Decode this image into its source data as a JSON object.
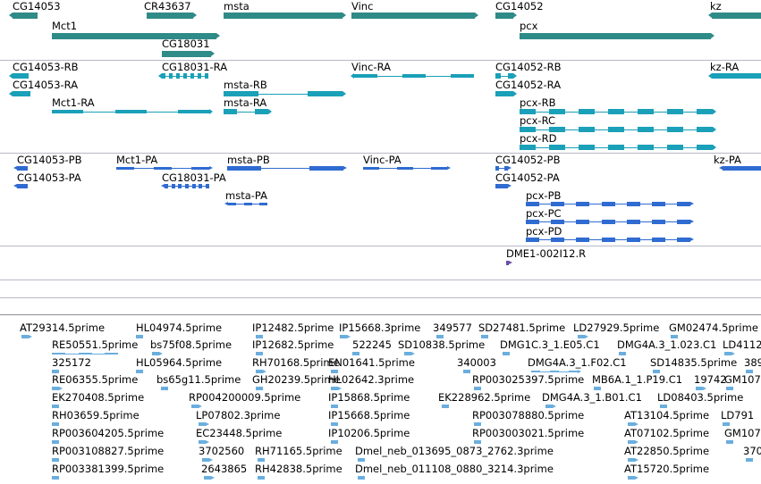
{
  "colors": {
    "gene": "#2e8b87",
    "transcript": "#1aa0b8",
    "protein": "#2f6bd1",
    "est": "#6aaede",
    "clone": "#6b4fa8",
    "separator": "#b8b8c8",
    "separator_dark": "#8c8c98"
  },
  "tracks": {
    "genes": [
      {
        "label": "CG14053"
      },
      {
        "label": "CR43637"
      },
      {
        "label": "msta"
      },
      {
        "label": "Vinc"
      },
      {
        "label": "CG14052"
      },
      {
        "label": "kz"
      },
      {
        "label": "Mct1"
      },
      {
        "label": "pcx"
      },
      {
        "label": "CG18031"
      }
    ],
    "transcripts": [
      {
        "label": "CG14053-RB"
      },
      {
        "label": "CG18031-RA"
      },
      {
        "label": "Vinc-RA"
      },
      {
        "label": "CG14052-RB"
      },
      {
        "label": "kz-RA"
      },
      {
        "label": "CG14053-RA"
      },
      {
        "label": "msta-RB"
      },
      {
        "label": "CG14052-RA"
      },
      {
        "label": "Mct1-RA"
      },
      {
        "label": "msta-RA"
      },
      {
        "label": "pcx-RB"
      },
      {
        "label": "pcx-RC"
      },
      {
        "label": "pcx-RD"
      }
    ],
    "proteins": [
      {
        "label": "CG14053-PB"
      },
      {
        "label": "Mct1-PA"
      },
      {
        "label": "msta-PB"
      },
      {
        "label": "Vinc-PA"
      },
      {
        "label": "CG14052-PB"
      },
      {
        "label": "kz-PA"
      },
      {
        "label": "CG14053-PA"
      },
      {
        "label": "CG18031-PA"
      },
      {
        "label": "CG14052-PA"
      },
      {
        "label": "msta-PA"
      },
      {
        "label": "pcx-PB"
      },
      {
        "label": "pcx-PC"
      },
      {
        "label": "pcx-PD"
      }
    ],
    "clones": [
      {
        "label": "DME1-002I12.R"
      }
    ],
    "ests": [
      {
        "label": "AT29314.5prime"
      },
      {
        "label": "HL04974.5prime"
      },
      {
        "label": "IP12482.5prime"
      },
      {
        "label": "IP15668.3prime"
      },
      {
        "label": "349577"
      },
      {
        "label": "SD27481.5prime"
      },
      {
        "label": "LD27929.5prime"
      },
      {
        "label": "GM02474.5prime"
      },
      {
        "label": "RE50551.5prime"
      },
      {
        "label": "bs75f08.5prime"
      },
      {
        "label": "IP12682.5prime"
      },
      {
        "label": "522245"
      },
      {
        "label": "SD10838.5prime"
      },
      {
        "label": "DMG1C.3_1.E05.C1"
      },
      {
        "label": "DMG4A.3_1.023.C1"
      },
      {
        "label": "LD4112"
      },
      {
        "label": "325172"
      },
      {
        "label": "HL05964.5prime"
      },
      {
        "label": "RH70168.5prime"
      },
      {
        "label": "EN01641.5prime"
      },
      {
        "label": "340003"
      },
      {
        "label": "DMG4A.3_1.F02.C1"
      },
      {
        "label": "SD14835.5prime"
      },
      {
        "label": "389"
      },
      {
        "label": "RE06355.5prime"
      },
      {
        "label": "bs65g11.5prime"
      },
      {
        "label": "GH20239.5prime"
      },
      {
        "label": "HL02642.3prime"
      },
      {
        "label": "RP003025397.5prime"
      },
      {
        "label": "MB6A.1_1.P19.C1"
      },
      {
        "label": "19742"
      },
      {
        "label": "GM107"
      },
      {
        "label": "EK270408.5prime"
      },
      {
        "label": "RP004200009.5prime"
      },
      {
        "label": "IP15868.5prime"
      },
      {
        "label": "EK228962.5prime"
      },
      {
        "label": "DMG4A.3_1.B01.C1"
      },
      {
        "label": "LD08403.5prime"
      },
      {
        "label": "RH03659.5prime"
      },
      {
        "label": "LP07802.3prime"
      },
      {
        "label": "IP15668.5prime"
      },
      {
        "label": "RP003078880.5prime"
      },
      {
        "label": "AT13104.5prime"
      },
      {
        "label": "LD791"
      },
      {
        "label": "RP003604205.5prime"
      },
      {
        "label": "EC23448.5prime"
      },
      {
        "label": "IP10206.5prime"
      },
      {
        "label": "RP003003021.5prime"
      },
      {
        "label": "AT07102.5prime"
      },
      {
        "label": "GM107"
      },
      {
        "label": "RP003108827.5prime"
      },
      {
        "label": "3702560"
      },
      {
        "label": "RH71165.5prime"
      },
      {
        "label": "Dmel_neb_013695_0873_2762.3prime"
      },
      {
        "label": "AT22850.5prime"
      },
      {
        "label": "370"
      },
      {
        "label": "RP003381399.5prime"
      },
      {
        "label": "2643865"
      },
      {
        "label": "RH42838.5prime"
      },
      {
        "label": "Dmel_neb_011108_0880_3214.3prime"
      },
      {
        "label": "AT15720.5prime"
      }
    ]
  }
}
